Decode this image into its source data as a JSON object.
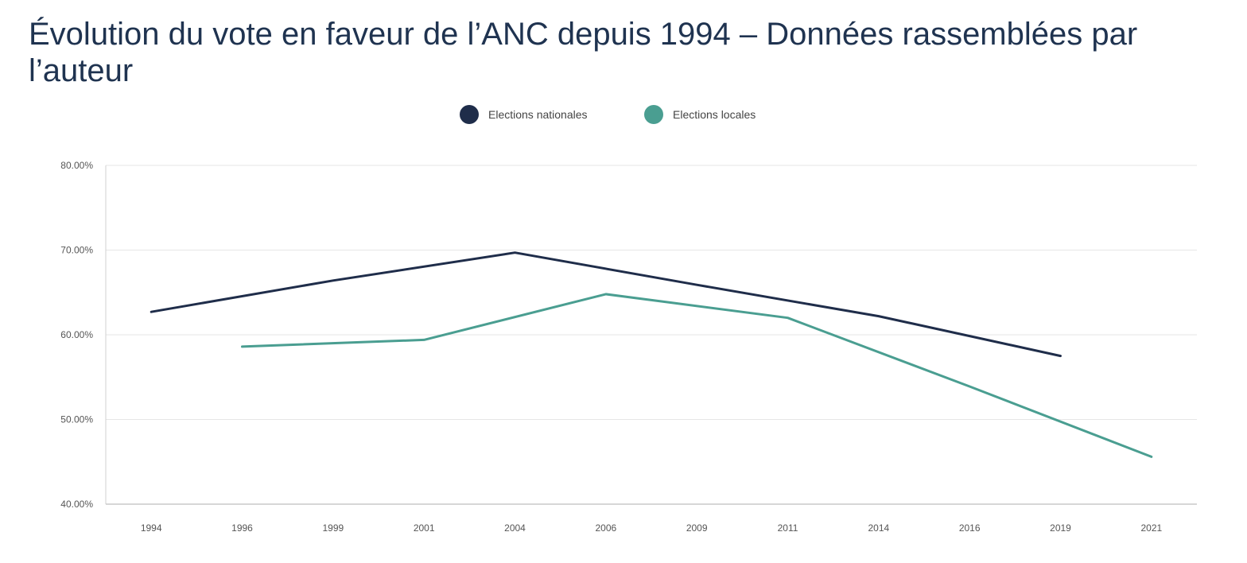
{
  "title": "Évolution du vote en faveur de l’ANC depuis 1994 – Données rassemblées par l’auteur",
  "chart_data": {
    "type": "line",
    "title": "Évolution du vote en faveur de l’ANC depuis 1994 – Données rassemblées par l’auteur",
    "xlabel": "",
    "ylabel": "",
    "categories": [
      "1994",
      "1996",
      "1999",
      "2001",
      "2004",
      "2006",
      "2009",
      "2011",
      "2014",
      "2016",
      "2019",
      "2021"
    ],
    "ylim": [
      40,
      80
    ],
    "yticks": [
      "40.00%",
      "50.00%",
      "60.00%",
      "70.00%",
      "80.00%"
    ],
    "grid": true,
    "legend": "top-center",
    "series": [
      {
        "name": "Elections nationales",
        "color": "#1f2d4a",
        "values": [
          62.7,
          null,
          66.4,
          null,
          69.7,
          null,
          65.9,
          null,
          62.2,
          null,
          57.5,
          null
        ]
      },
      {
        "name": "Elections locales",
        "color": "#4a9e91",
        "values": [
          null,
          58.6,
          null,
          59.4,
          null,
          64.8,
          null,
          62.0,
          null,
          53.9,
          null,
          45.6
        ]
      }
    ]
  }
}
